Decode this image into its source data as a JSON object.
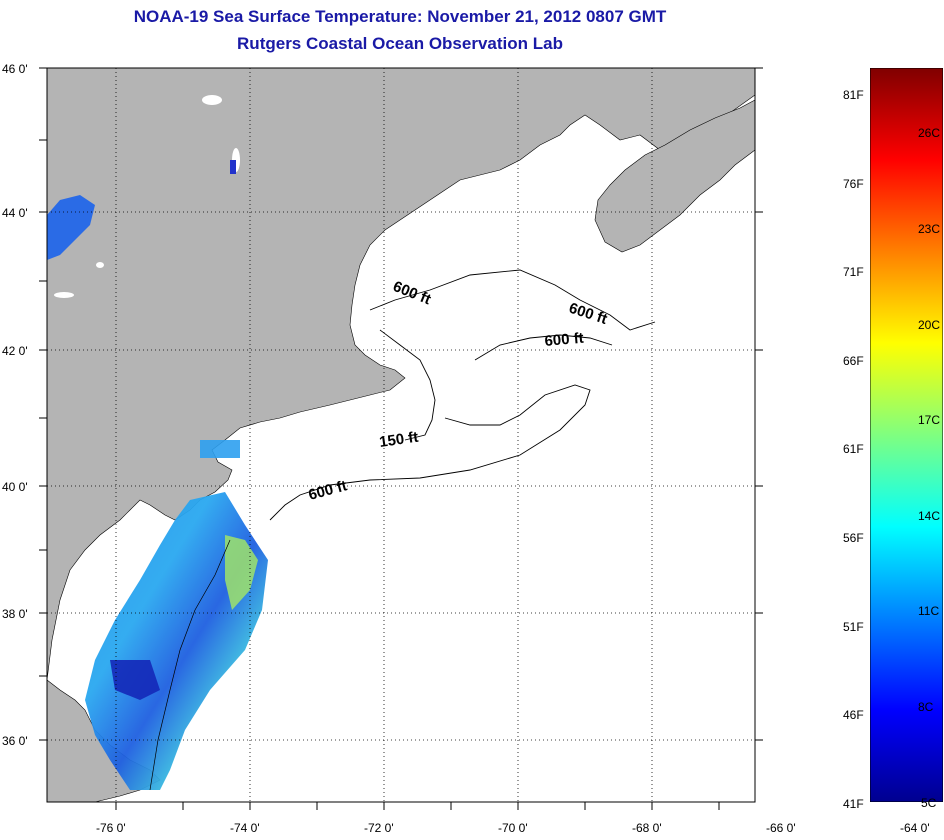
{
  "title": {
    "line1": "NOAA-19 Sea Surface Temperature:  November 21, 2012 0807 GMT",
    "line2": "Rutgers Coastal Ocean Observation Lab"
  },
  "map": {
    "lat_labels": [
      "46 0'",
      "44 0'",
      "42 0'",
      "40 0'",
      "38 0'",
      "36 0'"
    ],
    "lon_labels": [
      "-76 0'",
      "-74 0'",
      "-72 0'",
      "-70 0'",
      "-68 0'",
      "-66 0'",
      "-64 0'"
    ],
    "contour_labels": [
      "600 ft",
      "600 ft",
      "600 ft",
      "150 ft",
      "600 ft"
    ],
    "colors": {
      "land": "#b4b4b4",
      "ocean": "#ffffff",
      "grid": "#000000"
    }
  },
  "colorbar": {
    "fahrenheit_labels": [
      "81F",
      "76F",
      "71F",
      "66F",
      "61F",
      "56F",
      "51F",
      "46F",
      "41F"
    ],
    "celsius_labels": [
      "26C",
      "23C",
      "20C",
      "17C",
      "14C",
      "11C",
      "8C",
      "5C"
    ],
    "range_f": [
      41,
      81
    ],
    "colormap": "jet"
  }
}
